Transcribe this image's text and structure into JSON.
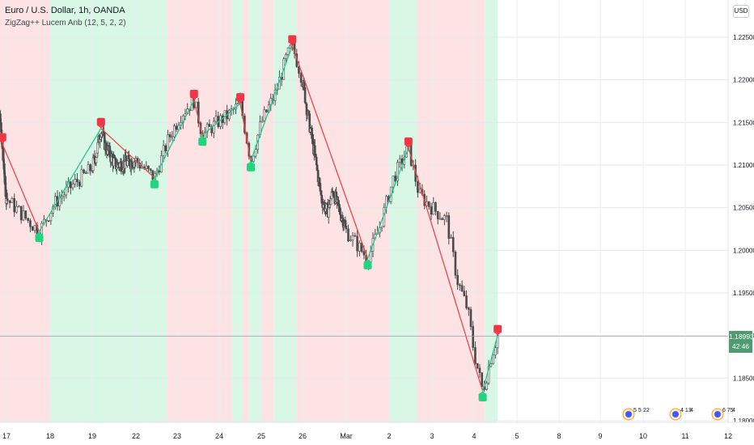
{
  "header": {
    "symbol_line": "Euro / U.S. Dollar, 1h, OANDA",
    "indicator_line": "ZigZag++ Lucem Anb (12, 5, 2, 2)",
    "currency_button": "USD"
  },
  "last_price": {
    "value": "1.18993",
    "countdown": "42:46"
  },
  "colors": {
    "bull": "#22d47e",
    "bear": "#f23645",
    "zig_up": "#1fc98c",
    "zig_down": "#e5484d",
    "bg_bull": "#d9f7e5",
    "bg_bear": "#fde3e4",
    "candle": "#4a4a4a",
    "price_tag": "#4e9b70"
  },
  "chart_data": {
    "type": "candlestick",
    "instrument": "Euro / U.S. Dollar",
    "timeframe": "1h",
    "source": "OANDA",
    "y_axis": {
      "position": "right",
      "ylim": [
        1.1785,
        1.2295
      ],
      "ticks": [
        "1.18000",
        "1.18500",
        "1.19000",
        "1.19500",
        "1.20000",
        "1.20500",
        "1.21000",
        "1.21500",
        "1.22000",
        "1.22500"
      ]
    },
    "x_axis": {
      "ticks": [
        "17",
        "18",
        "19",
        "22",
        "23",
        "24",
        "25",
        "26",
        "Mar",
        "2",
        "3",
        "4",
        "5",
        "8",
        "9",
        "10",
        "11",
        "12"
      ]
    },
    "zigzag_pivots": [
      {
        "type": "H",
        "x": 15.9,
        "y": 1.2125
      },
      {
        "type": "L",
        "x": 17.75,
        "y": 1.2022
      },
      {
        "type": "H",
        "x": 19.6,
        "y": 1.2143
      },
      {
        "type": "L",
        "x": 22.45,
        "y": 1.2085
      },
      {
        "type": "H",
        "x": 23.4,
        "y": 1.2176
      },
      {
        "type": "L",
        "x": 23.6,
        "y": 1.2135
      },
      {
        "type": "H",
        "x": 24.5,
        "y": 1.2172
      },
      {
        "type": "L",
        "x": 24.75,
        "y": 1.2105
      },
      {
        "type": "H",
        "x": 25.75,
        "y": 1.224
      },
      {
        "type": "L",
        "x": 29.5,
        "y": 1.199
      },
      {
        "type": "H",
        "x": 30.45,
        "y": 1.212
      },
      {
        "type": "L",
        "x": 32.2,
        "y": 1.1835
      },
      {
        "type": "H",
        "x": 32.55,
        "y": 1.19
      }
    ],
    "close_path": [
      [
        15.9,
        1.2125
      ],
      [
        16.4,
        1.2093
      ],
      [
        16.8,
        1.207
      ],
      [
        17.2,
        1.205
      ],
      [
        17.75,
        1.2022
      ],
      [
        18.1,
        1.2055
      ],
      [
        18.5,
        1.2075
      ],
      [
        18.9,
        1.2092
      ],
      [
        19.3,
        1.2115
      ],
      [
        19.6,
        1.2143
      ],
      [
        19.9,
        1.2122
      ],
      [
        20.6,
        1.21
      ],
      [
        22.0,
        1.2105
      ],
      [
        22.45,
        1.2085
      ],
      [
        22.8,
        1.2132
      ],
      [
        23.1,
        1.216
      ],
      [
        23.4,
        1.2176
      ],
      [
        23.6,
        1.2135
      ],
      [
        23.95,
        1.215
      ],
      [
        24.2,
        1.2158
      ],
      [
        24.5,
        1.2172
      ],
      [
        24.75,
        1.2105
      ],
      [
        25.0,
        1.215
      ],
      [
        25.35,
        1.2185
      ],
      [
        25.6,
        1.2225
      ],
      [
        25.75,
        1.224
      ],
      [
        26.0,
        1.22
      ],
      [
        26.3,
        1.2165
      ],
      [
        26.6,
        1.2135
      ],
      [
        26.9,
        1.2105
      ],
      [
        27.3,
        1.206
      ],
      [
        27.7,
        1.2045
      ],
      [
        28.1,
        1.207
      ],
      [
        28.4,
        1.2052
      ],
      [
        28.8,
        1.2035
      ],
      [
        29.2,
        1.201
      ],
      [
        29.5,
        1.199
      ],
      [
        29.8,
        1.203
      ],
      [
        30.1,
        1.2085
      ],
      [
        30.45,
        1.212
      ],
      [
        30.7,
        1.2065
      ],
      [
        31.0,
        1.205
      ],
      [
        31.35,
        1.2035
      ],
      [
        31.6,
        1.1965
      ],
      [
        31.85,
        1.193
      ],
      [
        32.0,
        1.188
      ],
      [
        32.2,
        1.1835
      ],
      [
        32.4,
        1.1875
      ],
      [
        32.55,
        1.19
      ]
    ],
    "background_bands": [
      {
        "from": 15.3,
        "to": 18.0,
        "trend": "bear"
      },
      {
        "from": 18.0,
        "to": 22.75,
        "trend": "bull"
      },
      {
        "from": 22.75,
        "to": 24.3,
        "trend": "bear"
      },
      {
        "from": 24.3,
        "to": 24.55,
        "trend": "bull"
      },
      {
        "from": 24.55,
        "to": 24.7,
        "trend": "bear"
      },
      {
        "from": 24.7,
        "to": 25.0,
        "trend": "bull"
      },
      {
        "from": 25.0,
        "to": 25.3,
        "trend": "bear"
      },
      {
        "from": 25.3,
        "to": 25.85,
        "trend": "bull"
      },
      {
        "from": 25.85,
        "to": 30.0,
        "trend": "bear"
      },
      {
        "from": 30.0,
        "to": 30.65,
        "trend": "bull"
      },
      {
        "from": 30.65,
        "to": 32.25,
        "trend": "bear"
      },
      {
        "from": 32.25,
        "to": 32.55,
        "trend": "bull"
      }
    ],
    "last_price": 1.18993
  },
  "events": [
    {
      "label": "5 5",
      "extra": "22"
    },
    {
      "label": "4 13",
      "extra": "4"
    },
    {
      "label": "6 75",
      "extra": "4"
    }
  ]
}
